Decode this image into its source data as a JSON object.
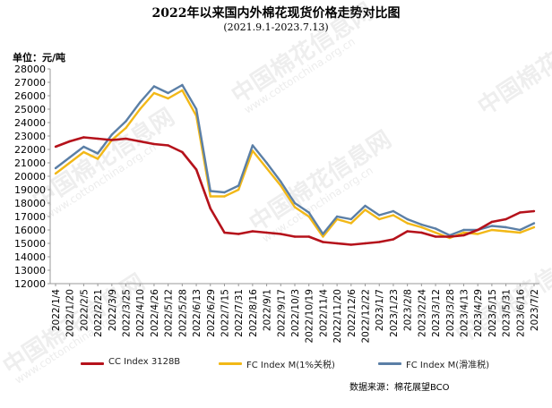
{
  "header": {
    "title": "2022年以来国内外棉花现货价格走势对比图",
    "subtitle": "(2021.9.1-2023.7.13)",
    "unit": "单位：元/吨"
  },
  "source": "数据来源：棉花展望BCO",
  "watermark": {
    "text": "中国棉花信息网",
    "url": "www.cottonchina.org.cn"
  },
  "chart_data": {
    "type": "line",
    "ylim": [
      12000,
      28000
    ],
    "yticks": [
      12000,
      13000,
      14000,
      15000,
      16000,
      17000,
      18000,
      19000,
      20000,
      21000,
      22000,
      23000,
      24000,
      25000,
      26000,
      27000,
      28000
    ],
    "categories": [
      "2022/1/4",
      "2022/1/20",
      "2022/2/5",
      "2022/2/21",
      "2022/3/9",
      "2022/3/25",
      "2022/4/10",
      "2022/4/26",
      "2022/5/12",
      "2022/5/28",
      "2022/6/13",
      "2022/6/29",
      "2022/7/15",
      "2022/7/31",
      "2022/8/16",
      "2022/9/1",
      "2022/9/17",
      "2022/10/3",
      "2022/10/19",
      "2022/11/4",
      "2022/11/20",
      "2022/12/6",
      "2022/12/22",
      "2023/1/7",
      "2023/1/23",
      "2023/2/8",
      "2023/2/24",
      "2023/3/12",
      "2023/3/28",
      "2023/4/13",
      "2023/4/29",
      "2023/5/15",
      "2023/5/31",
      "2023/6/16",
      "2023/7/2"
    ],
    "grid": false,
    "legend_position": "bottom",
    "series": [
      {
        "name": "CC Index 3128B",
        "color": "#b5121b",
        "values": [
          22200,
          22600,
          22900,
          22800,
          22700,
          22800,
          22600,
          22400,
          22300,
          21800,
          20500,
          17600,
          15800,
          15700,
          15900,
          15800,
          15700,
          15500,
          15500,
          15100,
          15000,
          14900,
          15000,
          15100,
          15300,
          15900,
          15800,
          15500,
          15500,
          15600,
          16000,
          16600,
          16800,
          17300,
          17400
        ]
      },
      {
        "name": "FC Index M(1%关税)",
        "color": "#f2b817",
        "values": [
          20200,
          21000,
          21800,
          21300,
          22700,
          23600,
          25000,
          26200,
          25800,
          26400,
          24500,
          18500,
          18500,
          19000,
          21900,
          20600,
          19300,
          17700,
          17000,
          15500,
          16800,
          16500,
          17500,
          16800,
          17100,
          16500,
          16200,
          15800,
          15400,
          15800,
          15700,
          16000,
          15900,
          15800,
          16200
        ]
      },
      {
        "name": "FC Index M(滑准税)",
        "color": "#5b7fa6",
        "values": [
          20600,
          21400,
          22200,
          21700,
          23100,
          24100,
          25500,
          26700,
          26200,
          26800,
          25000,
          18900,
          18800,
          19300,
          22300,
          21000,
          19600,
          18000,
          17300,
          15700,
          17000,
          16800,
          17800,
          17100,
          17400,
          16800,
          16400,
          16100,
          15600,
          16000,
          16000,
          16300,
          16200,
          16000,
          16500
        ]
      }
    ]
  }
}
